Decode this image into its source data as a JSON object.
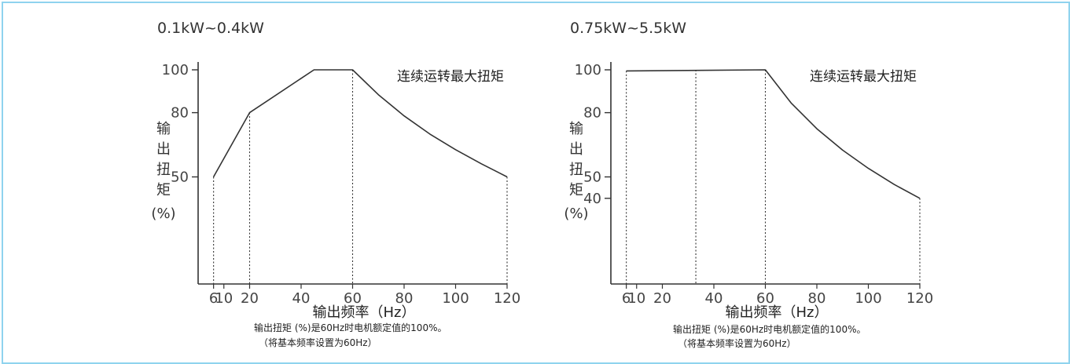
{
  "chart_data": [
    {
      "type": "line",
      "title": "0.1kW~0.4kW",
      "ylabel": [
        "输",
        "出",
        "扭",
        "矩",
        "(%)"
      ],
      "xlabel": "输出频率（Hz）",
      "annotation": "连续运转最大扭矩",
      "x_ticks": [
        6,
        10,
        20,
        40,
        60,
        80,
        100,
        120
      ],
      "y_ticks": [
        50,
        80,
        100
      ],
      "xlim": [
        0,
        120
      ],
      "ylim": [
        0,
        100
      ],
      "series": [
        {
          "x": [
            6,
            20,
            45,
            60,
            70,
            80,
            90,
            100,
            110,
            120
          ],
          "values": [
            50,
            80,
            100,
            100,
            88.4,
            78.5,
            70,
            62.7,
            56.1,
            50
          ]
        }
      ],
      "guides": [
        6,
        20,
        60,
        120
      ],
      "notes": [
        "输出扭矩 (%)是60Hz时电机额定值的100%。",
        "（将基本频率设置为60Hz）"
      ]
    },
    {
      "type": "line",
      "title": "0.75kW~5.5kW",
      "ylabel": [
        "输",
        "出",
        "扭",
        "矩",
        "(%)"
      ],
      "xlabel": "输出频率（Hz）",
      "annotation": "连续运转最大扭矩",
      "x_ticks": [
        6,
        10,
        20,
        40,
        60,
        80,
        100,
        120
      ],
      "y_ticks": [
        40,
        50,
        80,
        100
      ],
      "xlim": [
        0,
        120
      ],
      "ylim": [
        0,
        100
      ],
      "series": [
        {
          "x": [
            6,
            60,
            70,
            80,
            90,
            100,
            110,
            120
          ],
          "values": [
            99.5,
            100,
            84.5,
            72.5,
            62.5,
            54,
            46.5,
            40
          ]
        }
      ],
      "guides": [
        6,
        33,
        60,
        120
      ],
      "notes": [
        "输出扭矩 (%)是60Hz时电机额定值的100%。",
        "（将基本频率设置为60Hz）"
      ]
    }
  ]
}
